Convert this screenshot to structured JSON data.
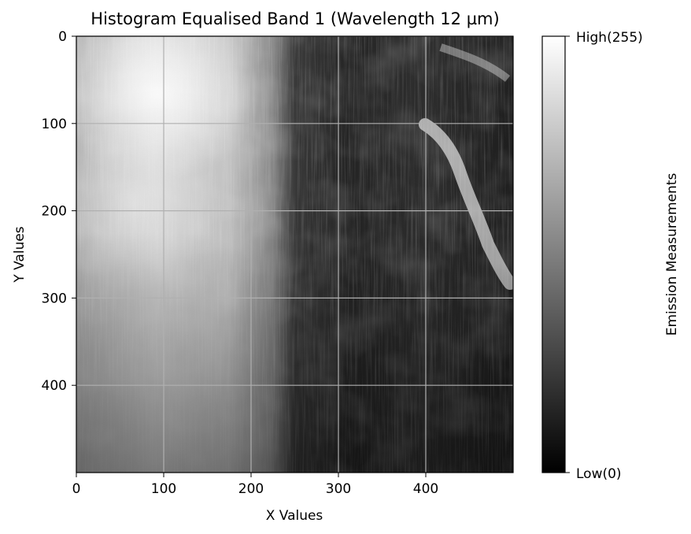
{
  "chart_data": {
    "type": "heatmap",
    "title": "Histogram Equalised Band 1 (Wavelength 12 µm)",
    "xlabel": "X Values",
    "ylabel": "Y Values",
    "xlim": [
      0,
      500
    ],
    "ylim": [
      500,
      0
    ],
    "x_ticks": [
      0,
      100,
      200,
      300,
      400
    ],
    "y_ticks": [
      0,
      100,
      200,
      300,
      400
    ],
    "grid": true,
    "grid_color": "#b0b0b0",
    "colormap": "gray",
    "colormap_range": [
      0,
      255
    ],
    "colorbar": {
      "label": "Emission Measurements",
      "tick_labels": [
        "High(255)",
        "Low(0)"
      ],
      "tick_values": [
        255,
        0
      ]
    }
  }
}
